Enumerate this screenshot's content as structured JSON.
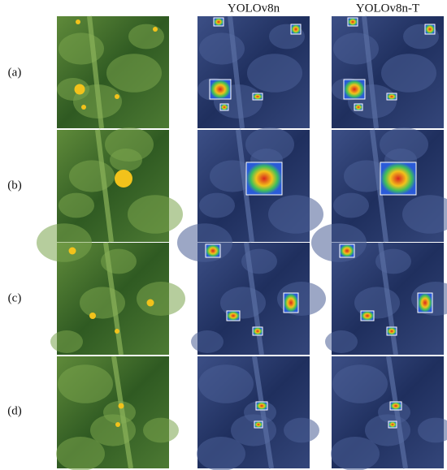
{
  "figure": {
    "column_headers": [
      "YOLOv8n",
      "YOLOv8n-T"
    ],
    "row_labels": [
      "(a)",
      "(b)",
      "(c)",
      "(d)"
    ]
  }
}
